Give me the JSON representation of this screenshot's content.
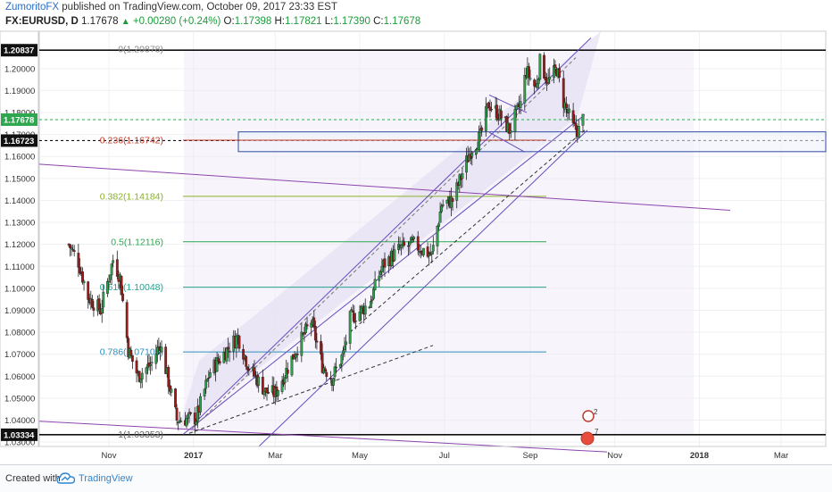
{
  "header": {
    "author": "ZumoritoFX",
    "published_text": "published on TradingView.com, October 09, 2017 23:33 EST",
    "symbol": "FX:EURUSD, D",
    "last": "1.17678",
    "change": "+0.00280 (+0.24%)",
    "o_label": "O:",
    "o": "1.17398",
    "h_label": "H:",
    "h": "1.17821",
    "l_label": "L:",
    "l": "1.17390",
    "c_label": "C:",
    "c": "1.17678"
  },
  "footer": {
    "created": "Created with",
    "brand": "TradingView"
  },
  "chart_data": {
    "type": "candlestick",
    "symbol": "FX:EURUSD",
    "interval": "D",
    "ylim": [
      1.028,
      1.217
    ],
    "y_ticks": [
      "1.20000",
      "1.19000",
      "1.18000",
      "1.17000",
      "1.16000",
      "1.15000",
      "1.14000",
      "1.13000",
      "1.12000",
      "1.11000",
      "1.10000",
      "1.09000",
      "1.08000",
      "1.07000",
      "1.06000",
      "1.05000",
      "1.04000",
      "1.03000"
    ],
    "x_ticks": [
      "Nov",
      "2017",
      "Mar",
      "May",
      "Jul",
      "Sep",
      "Nov",
      "2018",
      "Mar"
    ],
    "price_labels": [
      {
        "text": "1.20837",
        "value": 1.20837,
        "style": "black"
      },
      {
        "text": "1.17678",
        "value": 1.17678,
        "style": "green"
      },
      {
        "text": "1.16723",
        "value": 1.16723,
        "style": "black"
      },
      {
        "text": "1.03334",
        "value": 1.03334,
        "style": "black"
      }
    ],
    "fib_levels": [
      {
        "label": "0(1.20878)",
        "value": 1.20878,
        "color": "#888888"
      },
      {
        "label": "0.236(1.16742)",
        "value": 1.16742,
        "color": "#c0392b"
      },
      {
        "label": "0.382(1.14184)",
        "value": 1.14184,
        "color": "#8ab02a"
      },
      {
        "label": "0.5(1.12116)",
        "value": 1.12116,
        "color": "#2fa84f"
      },
      {
        "label": "0.618(1.10048)",
        "value": 1.10048,
        "color": "#1fa58f"
      },
      {
        "label": "0.786(1.07105)",
        "value": 1.07105,
        "color": "#2a8fbd"
      },
      {
        "label": "1(1.03353)",
        "value": 1.03353,
        "color": "#666666"
      }
    ],
    "anchors": [
      {
        "date": "2016-10-03",
        "price": 1.12
      },
      {
        "date": "2016-10-10",
        "price": 1.112
      },
      {
        "date": "2016-10-17",
        "price": 1.096
      },
      {
        "date": "2016-10-26",
        "price": 1.09
      },
      {
        "date": "2016-11-04",
        "price": 1.113
      },
      {
        "date": "2016-11-09",
        "price": 1.105
      },
      {
        "date": "2016-11-15",
        "price": 1.072
      },
      {
        "date": "2016-11-22",
        "price": 1.06
      },
      {
        "date": "2016-12-02",
        "price": 1.066
      },
      {
        "date": "2016-12-08",
        "price": 1.075
      },
      {
        "date": "2016-12-20",
        "price": 1.04
      },
      {
        "date": "2017-01-03",
        "price": 1.041
      },
      {
        "date": "2017-01-13",
        "price": 1.062
      },
      {
        "date": "2017-01-25",
        "price": 1.072
      },
      {
        "date": "2017-02-02",
        "price": 1.078
      },
      {
        "date": "2017-02-10",
        "price": 1.064
      },
      {
        "date": "2017-02-22",
        "price": 1.053
      },
      {
        "date": "2017-03-01",
        "price": 1.052
      },
      {
        "date": "2017-03-16",
        "price": 1.072
      },
      {
        "date": "2017-03-27",
        "price": 1.085
      },
      {
        "date": "2017-04-04",
        "price": 1.065
      },
      {
        "date": "2017-04-11",
        "price": 1.059
      },
      {
        "date": "2017-04-19",
        "price": 1.07
      },
      {
        "date": "2017-04-24",
        "price": 1.086
      },
      {
        "date": "2017-05-08",
        "price": 1.093
      },
      {
        "date": "2017-05-17",
        "price": 1.11
      },
      {
        "date": "2017-05-30",
        "price": 1.118
      },
      {
        "date": "2017-06-09",
        "price": 1.12
      },
      {
        "date": "2017-06-22",
        "price": 1.115
      },
      {
        "date": "2017-06-29",
        "price": 1.138
      },
      {
        "date": "2017-07-07",
        "price": 1.14
      },
      {
        "date": "2017-07-20",
        "price": 1.163
      },
      {
        "date": "2017-07-27",
        "price": 1.169
      },
      {
        "date": "2017-08-02",
        "price": 1.184
      },
      {
        "date": "2017-08-11",
        "price": 1.178
      },
      {
        "date": "2017-08-17",
        "price": 1.172
      },
      {
        "date": "2017-08-25",
        "price": 1.184
      },
      {
        "date": "2017-08-29",
        "price": 1.199
      },
      {
        "date": "2017-09-05",
        "price": 1.191
      },
      {
        "date": "2017-09-08",
        "price": 1.203
      },
      {
        "date": "2017-09-14",
        "price": 1.194
      },
      {
        "date": "2017-09-20",
        "price": 1.2
      },
      {
        "date": "2017-09-25",
        "price": 1.185
      },
      {
        "date": "2017-10-02",
        "price": 1.173
      },
      {
        "date": "2017-10-06",
        "price": 1.172
      },
      {
        "date": "2017-10-09",
        "price": 1.177
      }
    ]
  }
}
